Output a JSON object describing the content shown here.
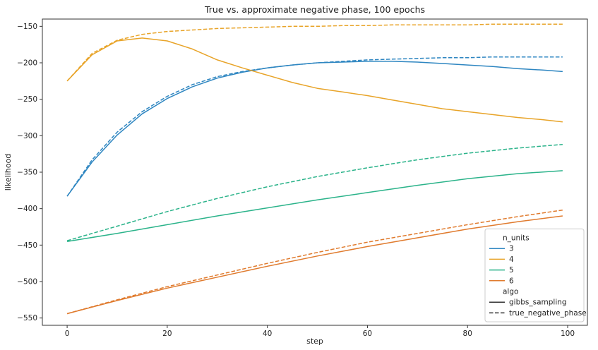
{
  "chart_data": {
    "type": "line",
    "title": "True vs. approximate negative phase, 100 epochs",
    "xlabel": "step",
    "ylabel": "likelihood",
    "xlim": [
      -4.95,
      103.95
    ],
    "ylim": [
      -560,
      -140
    ],
    "xticks": [
      0,
      20,
      40,
      60,
      80,
      100
    ],
    "yticks": [
      -550,
      -500,
      -450,
      -400,
      -350,
      -300,
      -250,
      -200,
      -150
    ],
    "grid": false,
    "legend": {
      "placement": "lower-right",
      "hue_title": "n_units",
      "hue_entries": [
        {
          "label": "3",
          "color": "#2e86c1"
        },
        {
          "label": "4",
          "color": "#e8a429"
        },
        {
          "label": "5",
          "color": "#2bb38a"
        },
        {
          "label": "6",
          "color": "#e07b2e"
        }
      ],
      "style_title": "algo",
      "style_entries": [
        {
          "label": "gibbs_sampling",
          "dash": "solid"
        },
        {
          "label": "true_negative_phase",
          "dash": "dashed"
        }
      ]
    },
    "series": [
      {
        "n_units": "3",
        "algo": "gibbs_sampling",
        "color": "#2e86c1",
        "dash": "solid",
        "x": [
          0,
          5,
          10,
          15,
          20,
          25,
          30,
          35,
          40,
          45,
          50,
          55,
          60,
          65,
          70,
          75,
          80,
          85,
          90,
          95,
          99
        ],
        "y": [
          -383,
          -336,
          -299,
          -270,
          -249,
          -233,
          -221,
          -213,
          -207,
          -203,
          -200,
          -199,
          -198,
          -198,
          -199,
          -201,
          -203,
          -205,
          -208,
          -210,
          -212
        ]
      },
      {
        "n_units": "3",
        "algo": "true_negative_phase",
        "color": "#2e86c1",
        "dash": "dashed",
        "x": [
          0,
          5,
          10,
          15,
          20,
          25,
          30,
          35,
          40,
          45,
          50,
          55,
          60,
          65,
          70,
          75,
          80,
          85,
          90,
          95,
          99
        ],
        "y": [
          -383,
          -333,
          -295,
          -267,
          -246,
          -230,
          -219,
          -212,
          -207,
          -203,
          -200,
          -198,
          -196,
          -195,
          -194,
          -193,
          -193,
          -192,
          -192,
          -192,
          -192
        ]
      },
      {
        "n_units": "4",
        "algo": "gibbs_sampling",
        "color": "#e8a429",
        "dash": "solid",
        "x": [
          0,
          5,
          10,
          15,
          20,
          25,
          30,
          35,
          40,
          45,
          50,
          55,
          60,
          65,
          70,
          75,
          80,
          85,
          90,
          95,
          99
        ],
        "y": [
          -225,
          -189,
          -170,
          -166,
          -170,
          -181,
          -196,
          -207,
          -217,
          -227,
          -235,
          -240,
          -245,
          -251,
          -257,
          -263,
          -267,
          -271,
          -275,
          -278,
          -281
        ]
      },
      {
        "n_units": "4",
        "algo": "true_negative_phase",
        "color": "#e8a429",
        "dash": "dashed",
        "x": [
          0,
          5,
          10,
          15,
          20,
          25,
          30,
          35,
          40,
          45,
          50,
          55,
          60,
          65,
          70,
          75,
          80,
          85,
          90,
          95,
          99
        ],
        "y": [
          -225,
          -187,
          -169,
          -161,
          -157,
          -155,
          -153,
          -152,
          -151,
          -150,
          -150,
          -149,
          -149,
          -148,
          -148,
          -148,
          -148,
          -147,
          -147,
          -147,
          -147
        ]
      },
      {
        "n_units": "5",
        "algo": "gibbs_sampling",
        "color": "#2bb38a",
        "dash": "solid",
        "x": [
          0,
          10,
          20,
          30,
          40,
          50,
          60,
          70,
          80,
          90,
          99
        ],
        "y": [
          -445,
          -434,
          -422,
          -410,
          -399,
          -388,
          -378,
          -368,
          -359,
          -352,
          -348
        ]
      },
      {
        "n_units": "5",
        "algo": "true_negative_phase",
        "color": "#2bb38a",
        "dash": "dashed",
        "x": [
          0,
          10,
          20,
          30,
          40,
          50,
          60,
          70,
          80,
          90,
          99
        ],
        "y": [
          -444,
          -424,
          -404,
          -386,
          -370,
          -356,
          -344,
          -333,
          -324,
          -317,
          -312
        ]
      },
      {
        "n_units": "6",
        "algo": "gibbs_sampling",
        "color": "#e07b2e",
        "dash": "solid",
        "x": [
          0,
          10,
          20,
          30,
          40,
          50,
          60,
          70,
          80,
          90,
          99
        ],
        "y": [
          -544,
          -526,
          -509,
          -494,
          -479,
          -465,
          -452,
          -440,
          -428,
          -418,
          -410
        ]
      },
      {
        "n_units": "6",
        "algo": "true_negative_phase",
        "color": "#e07b2e",
        "dash": "dashed",
        "x": [
          0,
          10,
          20,
          30,
          40,
          50,
          60,
          70,
          80,
          90,
          99
        ],
        "y": [
          -544,
          -525,
          -507,
          -491,
          -475,
          -460,
          -446,
          -434,
          -422,
          -411,
          -402
        ]
      }
    ]
  }
}
